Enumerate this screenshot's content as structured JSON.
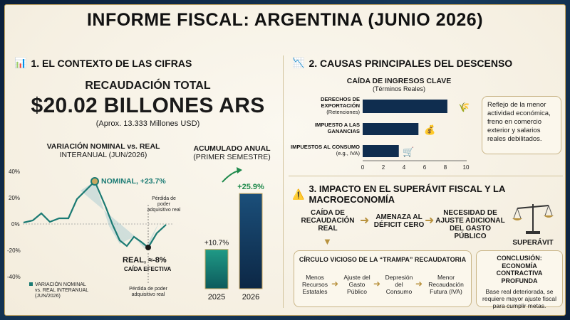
{
  "title": "INFORME FISCAL: ARGENTINA (JUNIO 2026)",
  "section1": {
    "heading": "1. EL CONTEXTO DE LAS CIFRAS",
    "total_label": "RECAUDACIÓN TOTAL",
    "total_value": "$20.02 BILLONES ARS",
    "total_note": "(Aprox. 13.333 Millones USD)",
    "line_chart": {
      "title_line1": "VARIACIÓN NOMINAL vs. REAL",
      "title_line2": "INTERANUAL (JUN/2026)",
      "y_ticks": [
        "40%",
        "20%",
        "0%",
        "-20%",
        "-40%"
      ],
      "nominal_label": "NOMINAL, +23.7%",
      "real_label": "REAL, ≈-8%",
      "real_sub": "CAÍDA EFECTIVA",
      "annotation_upper": [
        "Pérdida de",
        "poder",
        "adquisitivo real"
      ],
      "annotation_lower": [
        "Pérdida de poder",
        "adquisitivo real"
      ],
      "legend_lines": [
        "VARIACIÓN NOMINAL",
        "vs. REAL INTERANUAL",
        "(JUN/2026)"
      ]
    },
    "bar_chart": {
      "title_line1": "ACUMULADO ANUAL",
      "title_line2": "(PRIMER SEMESTRE)",
      "bars": [
        {
          "label": "2025",
          "value": 10.7,
          "text": "+10.7%"
        },
        {
          "label": "2026",
          "value": 25.9,
          "text": "+25.9%"
        }
      ]
    }
  },
  "section2": {
    "heading": "2. CAUSAS PRINCIPALES DEL DESCENSO",
    "chart_title": "CAÍDA DE INGRESOS CLAVE",
    "chart_subtitle": "(Términos Reales)",
    "categories": [
      {
        "lines": [
          "DERECHOS DE",
          "EXPORTACIÓN",
          "(Retenciones)"
        ],
        "value": 8.2
      },
      {
        "lines": [
          "IMPUESTO A LAS",
          "GANANCIAS"
        ],
        "value": 5.4
      },
      {
        "lines": [
          "IMPUESTOS AL CONSUMO",
          "(e.g., IVA)"
        ],
        "value": 3.5
      }
    ],
    "x_ticks": [
      "0",
      "2",
      "4",
      "6",
      "8",
      "10"
    ],
    "note_lines": [
      "Reflejo de la menor",
      "actividad económica,",
      "freno en comercio",
      "exterior y salarios",
      "reales debilitados."
    ]
  },
  "section3": {
    "heading": "3. IMPACTO EN EL SUPERÁVIT FISCAL Y LA MACROECONOMÍA",
    "flow": [
      [
        "CAÍDA DE",
        "RECAUDACIÓN",
        "REAL"
      ],
      [
        "AMENAZA AL",
        "DÉFICIT CERO"
      ],
      [
        "NECESIDAD DE",
        "AJUSTE ADICIONAL",
        "DEL GASTO PÚBLICO"
      ]
    ],
    "scale_label": "SUPERÁVIT",
    "cycle_title": "CÍRCULO VICIOSO DE LA “TRAMPA” RECAUDATORIA",
    "cycle": [
      [
        "Menos",
        "Recursos",
        "Estatales"
      ],
      [
        "Ajuste del",
        "Gasto",
        "Público"
      ],
      [
        "Depresión",
        "del",
        "Consumo"
      ],
      [
        "Menor",
        "Recaudación",
        "Futura (IVA)"
      ]
    ],
    "conclusion_title": [
      "CONCLUSIÓN: ECONOMÍA",
      "CONTRACTIVA PROFUNDA"
    ],
    "conclusion_body": [
      "Base real deteriorada, se",
      "requiere mayor ajuste fiscal",
      "para cumplir metas."
    ]
  },
  "colors": {
    "navy": "#0f2d4f",
    "teal": "#1a7a73",
    "green": "#1f8a4c",
    "gold": "#b8923e"
  }
}
